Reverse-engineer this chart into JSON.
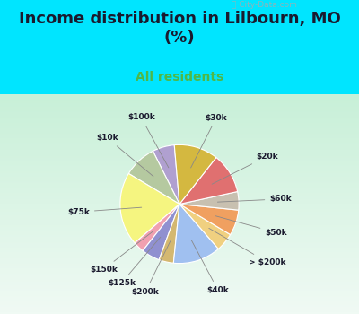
{
  "title": "Income distribution in Lilbourn, MO\n(%)",
  "subtitle": "All residents",
  "title_color": "#1a1a2e",
  "subtitle_color": "#4db848",
  "background_top": "#00e5ff",
  "background_chart_top": "#c8f0d8",
  "background_chart_bottom": "#e8f8f0",
  "labels": [
    "$100k",
    "$10k",
    "$75k",
    "$150k",
    "$125k",
    "$200k",
    "$40k",
    "> $200k",
    "$50k",
    "$60k",
    "$20k",
    "$30k"
  ],
  "values": [
    6,
    9,
    20,
    3,
    5,
    4,
    13,
    5,
    7,
    5,
    11,
    12
  ],
  "colors": [
    "#b0a0d0",
    "#b5c9a0",
    "#f5f580",
    "#f0a0b0",
    "#9090d0",
    "#d4b870",
    "#a0c0f0",
    "#f0d080",
    "#f0a060",
    "#c8c0b0",
    "#e07070",
    "#d4b840"
  ],
  "startangle": 95
}
